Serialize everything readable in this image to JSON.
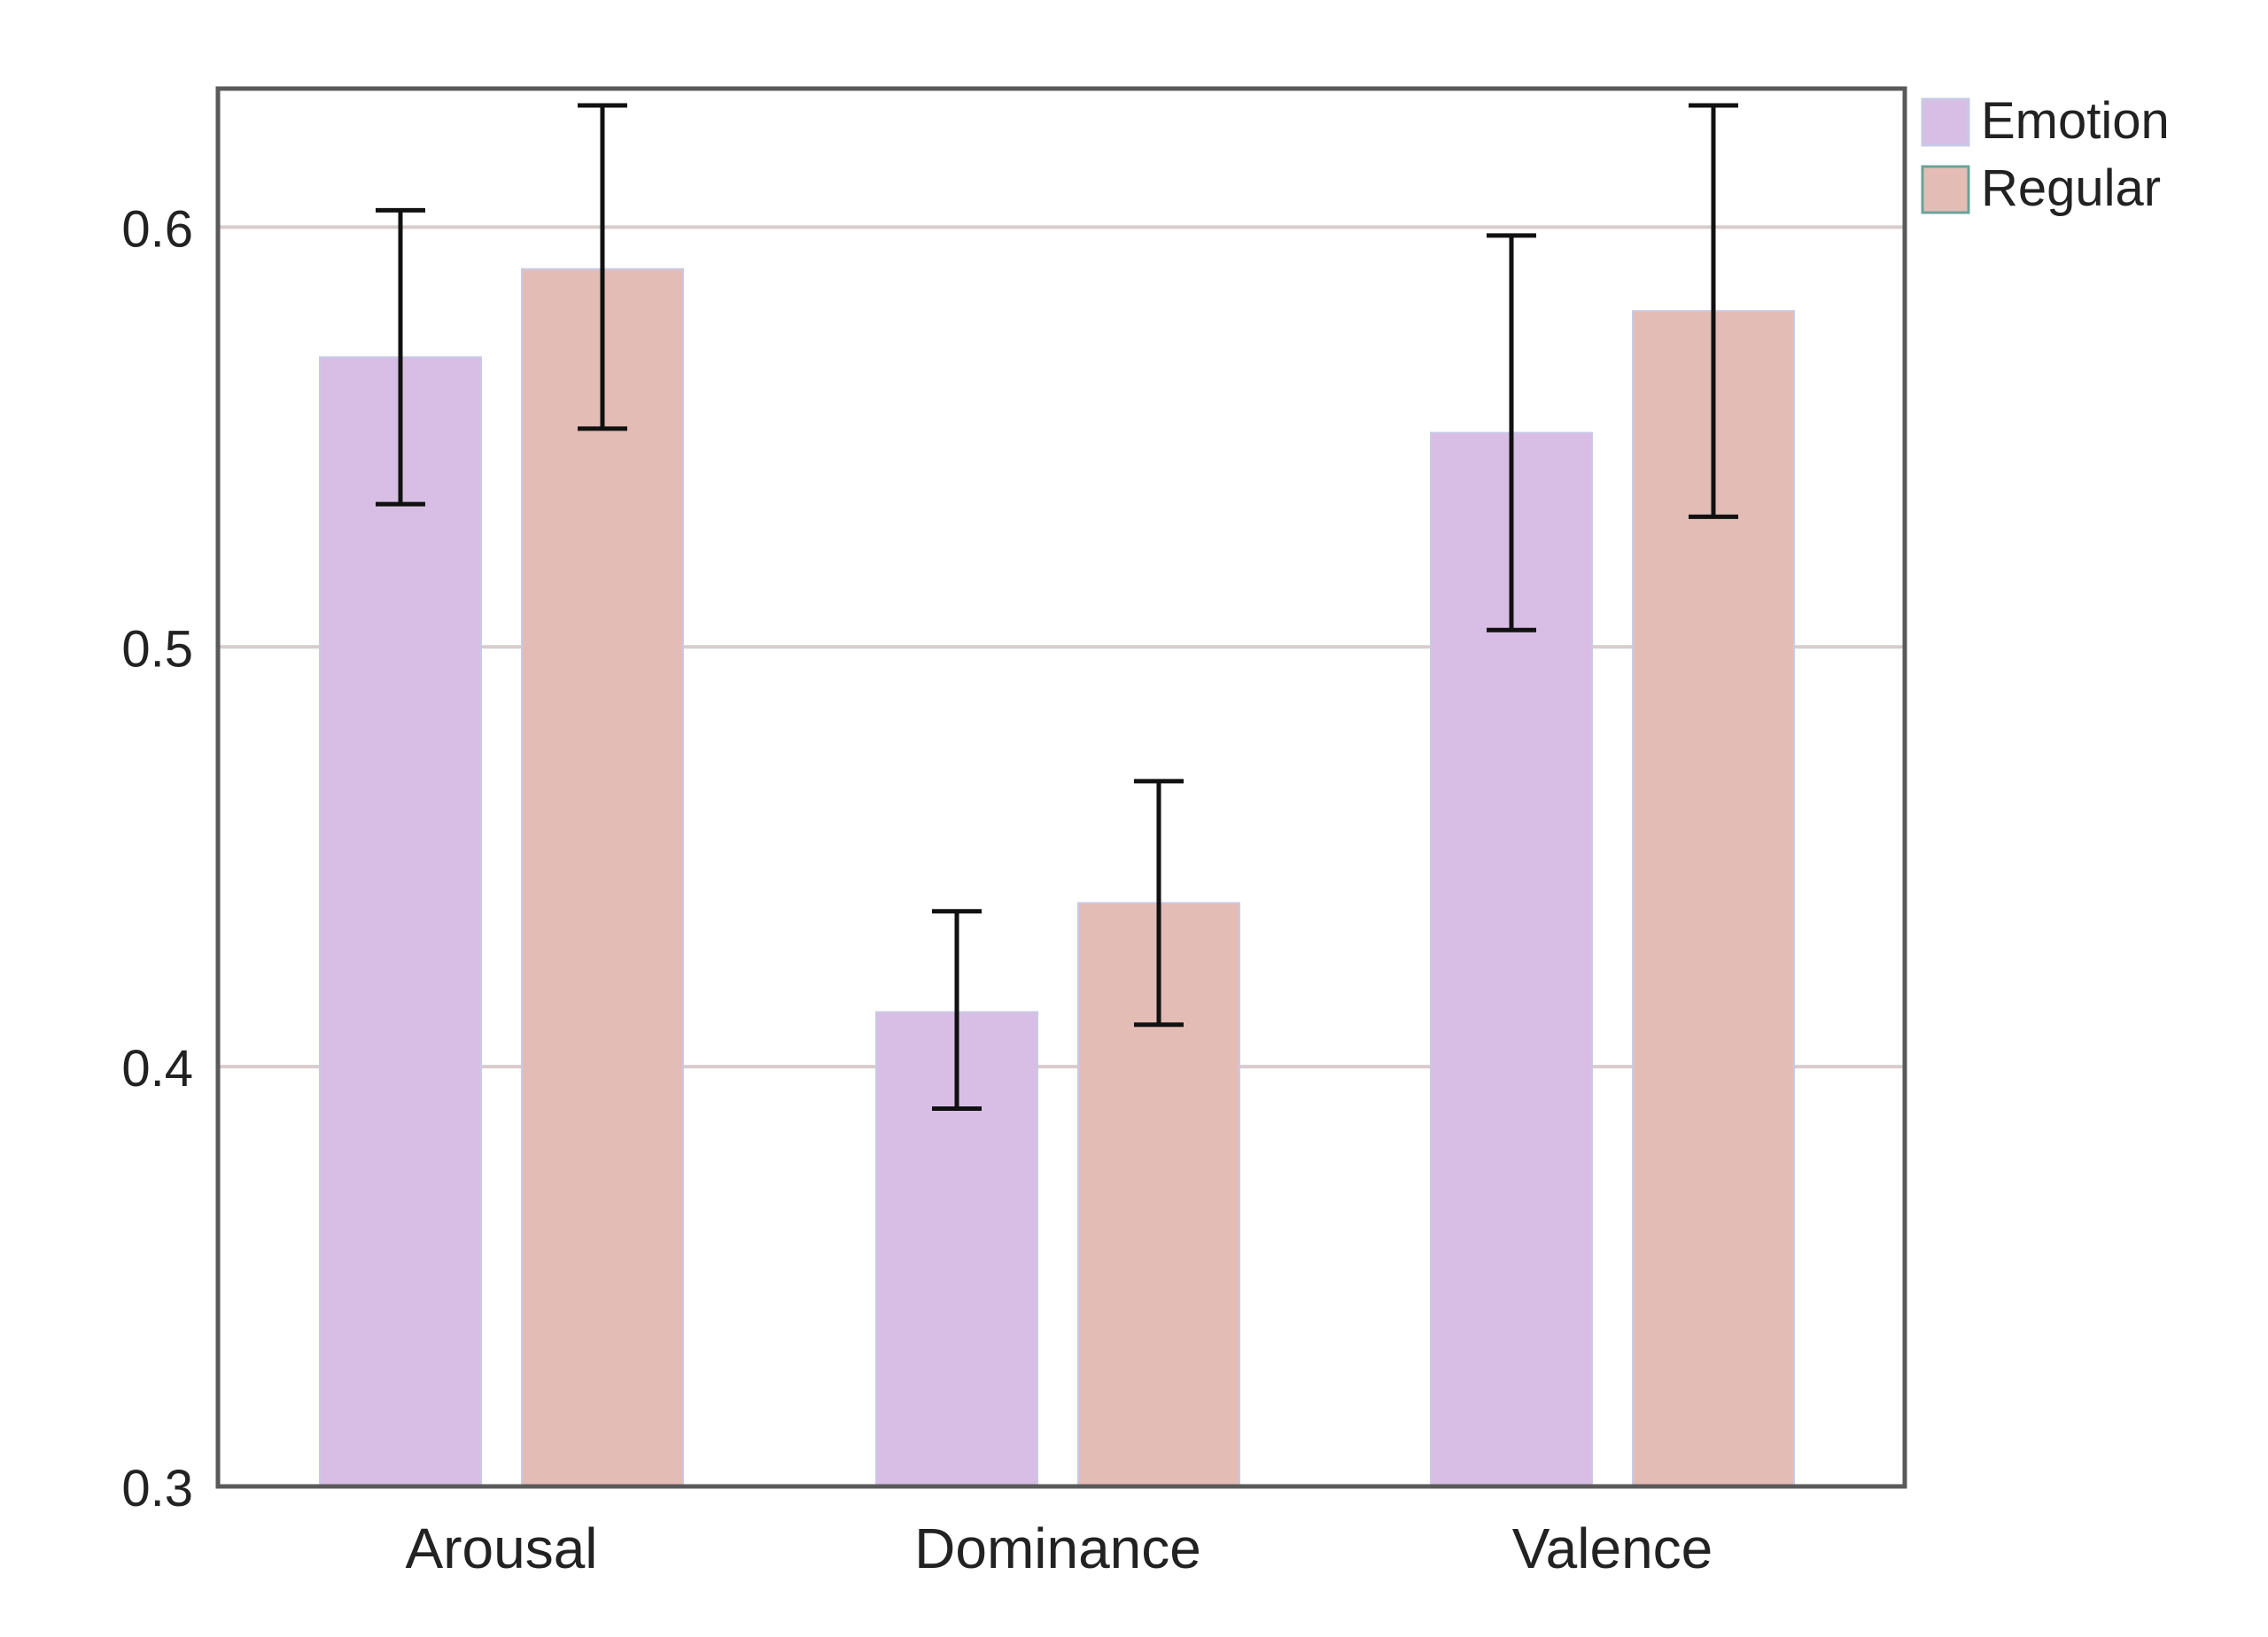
{
  "chart_data": {
    "type": "bar",
    "categories": [
      "Arousal",
      "Dominance",
      "Valence"
    ],
    "series": [
      {
        "name": "Emotion",
        "color": "#d8bee4",
        "values": [
          0.569,
          0.413,
          0.551
        ],
        "error_low": [
          0.534,
          0.39,
          0.504
        ],
        "error_high": [
          0.604,
          0.437,
          0.598
        ]
      },
      {
        "name": "Regular",
        "color": "#e4bcb6",
        "values": [
          0.59,
          0.439,
          0.58
        ],
        "error_low": [
          0.552,
          0.41,
          0.531
        ],
        "error_high": [
          0.629,
          0.468,
          0.629
        ]
      }
    ],
    "title": "",
    "xlabel": "",
    "ylabel": "",
    "ylim": [
      0.3,
      0.633
    ],
    "yticks": [
      "0.3",
      "0.4",
      "0.5",
      "0.6"
    ],
    "grid": "horizontal",
    "legend_position": "top-right outside",
    "grid_color": "#d8cccc",
    "frame_color": "#5a5a5a",
    "errorbar_color": "#111111",
    "text_color": "#222222"
  }
}
